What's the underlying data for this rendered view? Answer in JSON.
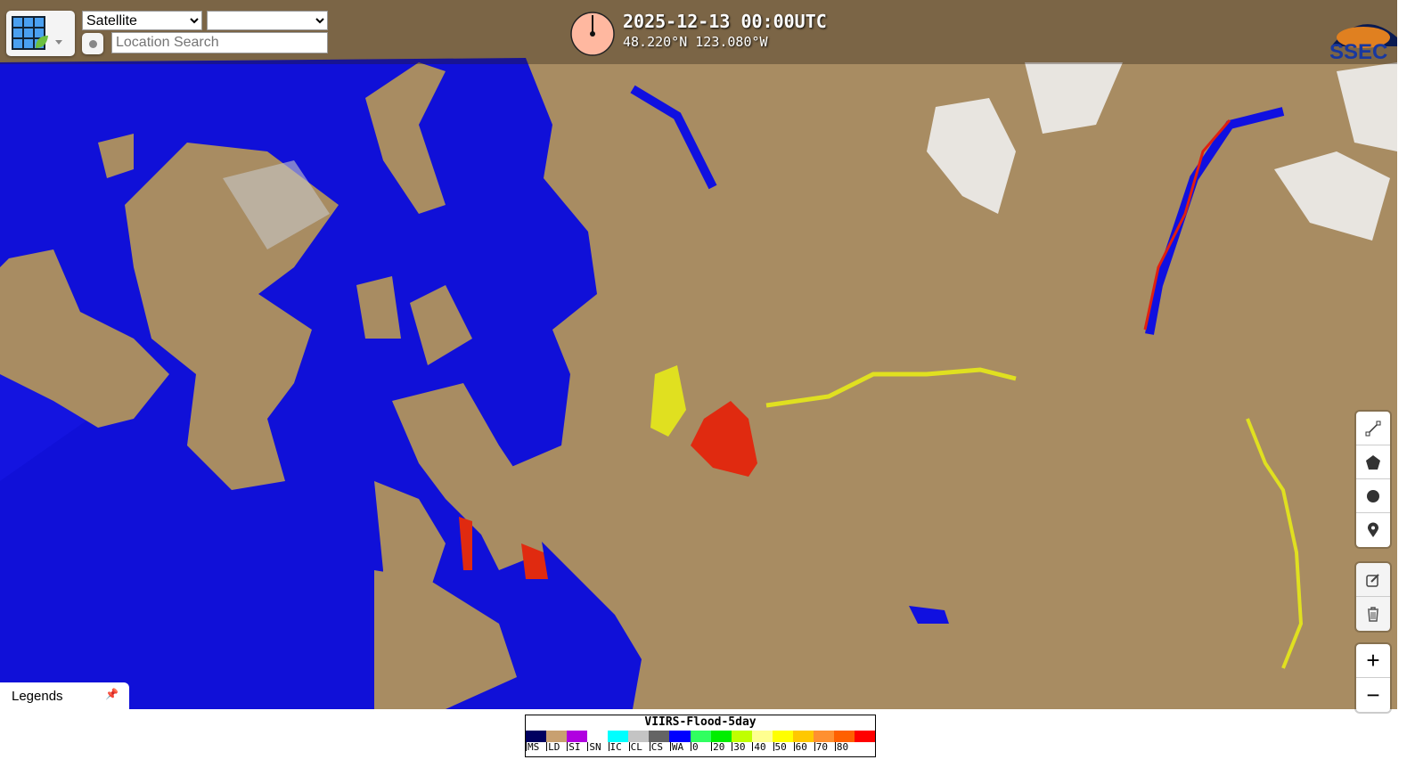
{
  "controls": {
    "layer_select": "Satellite",
    "second_select": "",
    "search_placeholder": "Location Search"
  },
  "header": {
    "datetime": "2025-12-13 00:00UTC",
    "coords": "48.220°N 123.080°W",
    "logo": "SSEC"
  },
  "draw_tools": [
    "draw-polyline",
    "draw-polygon",
    "draw-circle",
    "draw-marker"
  ],
  "edit_tools": [
    "edit-layers",
    "delete-layers"
  ],
  "zoom": {
    "in": "+",
    "out": "−"
  },
  "legends_tab": {
    "label": "Legends"
  },
  "legend": {
    "title": "VIIRS-Flood-5day",
    "colors": [
      "#000060",
      "#c8a070",
      "#b000e0",
      "#ffffff",
      "#00ffff",
      "#c4c4c4",
      "#646464",
      "#0000ff",
      "#30ff60",
      "#00ee00",
      "#c0ff00",
      "#ffff90",
      "#ffff00",
      "#ffc800",
      "#ff9030",
      "#ff6000",
      "#ff0000"
    ],
    "labels": [
      "MS",
      "LD",
      "SI",
      "SN",
      "IC",
      "CL",
      "CS",
      "WA",
      "0",
      "20",
      "30",
      "40",
      "50",
      "60",
      "70",
      "80",
      ""
    ]
  }
}
